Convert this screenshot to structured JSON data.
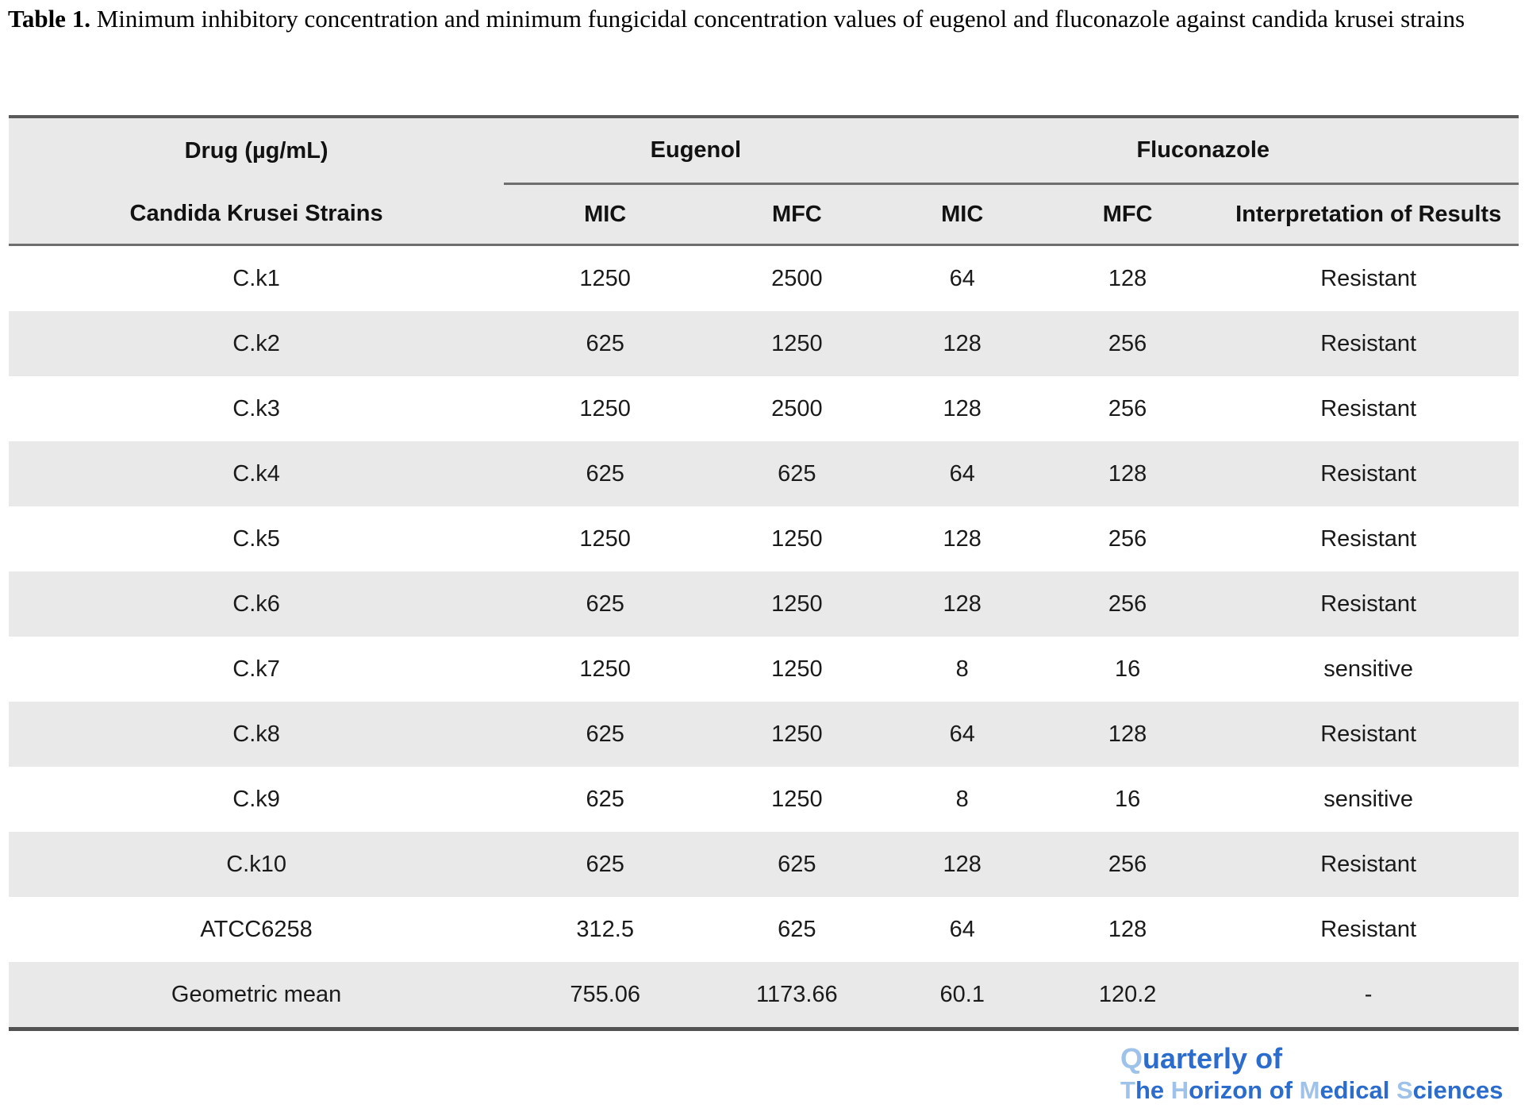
{
  "caption": {
    "label": "Table 1.",
    "text": " Minimum inhibitory concentration and minimum fungicidal concentration values of eugenol and fluconazole against candida krusei strains"
  },
  "table": {
    "header": {
      "drug_label": "Drug (µg/mL)",
      "strains_label": "Candida Krusei Strains",
      "group_eugenol": "Eugenol",
      "group_fluconazole": "Fluconazole",
      "subcols": [
        "MIC",
        "MFC",
        "MIC",
        "MFC",
        "Interpretation of Results"
      ]
    },
    "rows": [
      {
        "strain": "C.k1",
        "values": [
          "1250",
          "2500",
          "64",
          "128",
          "Resistant"
        ]
      },
      {
        "strain": "C.k2",
        "values": [
          "625",
          "1250",
          "128",
          "256",
          "Resistant"
        ]
      },
      {
        "strain": "C.k3",
        "values": [
          "1250",
          "2500",
          "128",
          "256",
          "Resistant"
        ]
      },
      {
        "strain": "C.k4",
        "values": [
          "625",
          "625",
          "64",
          "128",
          "Resistant"
        ]
      },
      {
        "strain": "C.k5",
        "values": [
          "1250",
          "1250",
          "128",
          "256",
          "Resistant"
        ]
      },
      {
        "strain": "C.k6",
        "values": [
          "625",
          "1250",
          "128",
          "256",
          "Resistant"
        ]
      },
      {
        "strain": "C.k7",
        "values": [
          "1250",
          "1250",
          "8",
          "16",
          "sensitive"
        ]
      },
      {
        "strain": "C.k8",
        "values": [
          "625",
          "1250",
          "64",
          "128",
          "Resistant"
        ]
      },
      {
        "strain": "C.k9",
        "values": [
          "625",
          "1250",
          "8",
          "16",
          "sensitive"
        ]
      },
      {
        "strain": "C.k10",
        "values": [
          "625",
          "625",
          "128",
          "256",
          "Resistant"
        ]
      },
      {
        "strain": "ATCC6258",
        "values": [
          "312.5",
          "625",
          "64",
          "128",
          "Resistant"
        ]
      },
      {
        "strain": "Geometric mean",
        "values": [
          "755.06",
          "1173.66",
          "60.1",
          "120.2",
          "-"
        ]
      }
    ],
    "stripe_color": "#e9e9e9"
  },
  "footer_logo": {
    "line1": [
      {
        "text": "Q",
        "light": true
      },
      {
        "text": "uarterly of",
        "light": false
      }
    ],
    "line2": [
      {
        "text": "T",
        "light": true
      },
      {
        "text": "he ",
        "light": false
      },
      {
        "text": "H",
        "light": true
      },
      {
        "text": "orizon of ",
        "light": false
      },
      {
        "text": "M",
        "light": true
      },
      {
        "text": "edical ",
        "light": false
      },
      {
        "text": "S",
        "light": true
      },
      {
        "text": "ciences",
        "light": false
      }
    ],
    "dark_blue": "#2b6ccc",
    "light_blue": "#9fc2ea"
  }
}
